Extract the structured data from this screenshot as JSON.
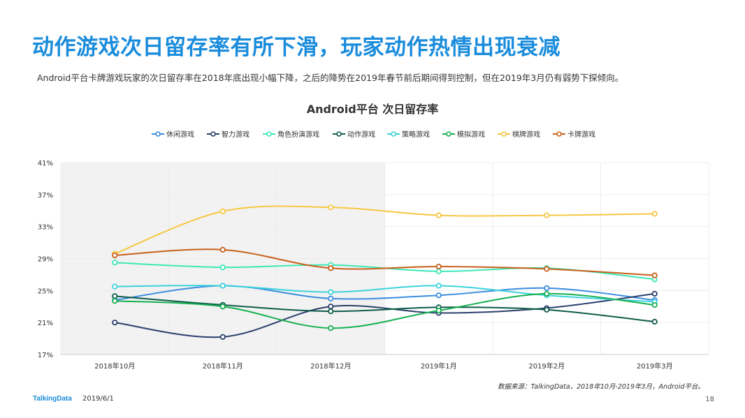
{
  "header": {
    "title": "动作游戏次日留存率有所下滑，玩家动作热情出现衰减",
    "subtitle": "Android平台卡牌游戏玩家的次日留存率在2018年底出现小幅下降，之后的降势在2019年春节前后期间得到控制，但在2019年3月仍有弱势下探倾向。"
  },
  "footer": {
    "brand": "TalkingData",
    "date": "2019/6/1",
    "source": "数据来源：TalkingData，2018年10月-2019年3月，Android平台。",
    "page": "18"
  },
  "chart_data": {
    "type": "line",
    "title": "Android平台  次日留存率",
    "categories": [
      "2018年10月",
      "2018年11月",
      "2018年12月",
      "2019年1月",
      "2019年2月",
      "2019年3月"
    ],
    "y_ticks": [
      "17%",
      "21%",
      "25%",
      "29%",
      "33%",
      "37%",
      "41%"
    ],
    "ylim": [
      17,
      41
    ],
    "highlight": {
      "from": "2018年10月",
      "to": "2018年12月",
      "color": "#f2f2f2"
    },
    "legend_position": "top",
    "grid": true,
    "series": [
      {
        "name": "休闲游戏",
        "color": "#3b8de0",
        "values": [
          23.8,
          25.6,
          24.0,
          24.4,
          25.3,
          23.8
        ]
      },
      {
        "name": "智力游戏",
        "color": "#2b3f6c",
        "values": [
          21.0,
          19.2,
          23.0,
          22.2,
          22.8,
          24.6
        ]
      },
      {
        "name": "角色扮演游戏",
        "color": "#3de8b5",
        "values": [
          28.5,
          27.9,
          28.2,
          27.4,
          27.8,
          26.4
        ]
      },
      {
        "name": "动作游戏",
        "color": "#0e5c4a",
        "values": [
          24.3,
          23.2,
          22.4,
          22.9,
          22.6,
          21.1
        ]
      },
      {
        "name": "策略游戏",
        "color": "#3dd3dc",
        "values": [
          25.5,
          25.6,
          24.8,
          25.6,
          24.4,
          23.6
        ]
      },
      {
        "name": "模拟游戏",
        "color": "#16b050",
        "values": [
          23.7,
          23.0,
          20.3,
          22.5,
          24.6,
          23.2
        ]
      },
      {
        "name": "棋牌游戏",
        "color": "#f7c743",
        "values": [
          29.6,
          34.9,
          35.4,
          34.4,
          34.4,
          34.6
        ]
      },
      {
        "name": "卡牌游戏",
        "color": "#c8601a",
        "values": [
          29.4,
          30.1,
          27.8,
          28.0,
          27.7,
          26.9
        ]
      }
    ]
  }
}
